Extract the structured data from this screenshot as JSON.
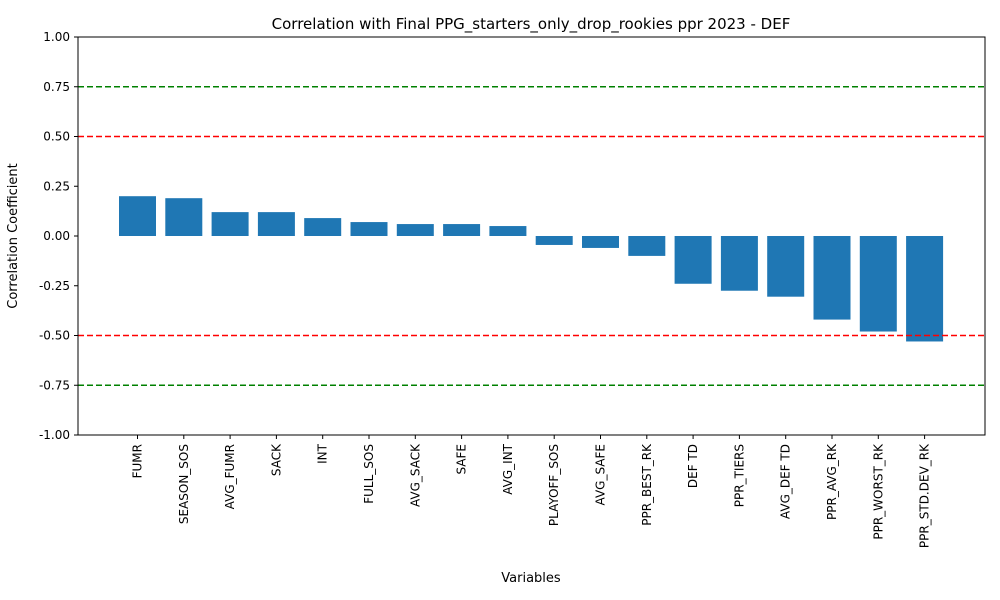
{
  "chart_data": {
    "type": "bar",
    "title": "Correlation with Final PPG_starters_only_drop_rookies ppr 2023 - DEF",
    "xlabel": "Variables",
    "ylabel": "Correlation Coefficient",
    "ylim": [
      -1.0,
      1.0
    ],
    "yticks": [
      "-1.00",
      "-0.75",
      "-0.50",
      "-0.25",
      "0.00",
      "0.25",
      "0.50",
      "0.75",
      "1.00"
    ],
    "categories": [
      "FUMR",
      "SEASON_SOS",
      "AVG_FUMR",
      "SACK",
      "INT",
      "FULL_SOS",
      "AVG_SACK",
      "SAFE",
      "AVG_INT",
      "PLAYOFF_SOS",
      "AVG_SAFE",
      "PPR_BEST_RK",
      "DEF TD",
      "PPR_TIERS",
      "AVG_DEF TD",
      "PPR_AVG_RK",
      "PPR_WORST_RK",
      "PPR_STD.DEV_RK"
    ],
    "values": [
      0.2,
      0.19,
      0.12,
      0.12,
      0.09,
      0.07,
      0.06,
      0.06,
      0.05,
      -0.045,
      -0.06,
      -0.1,
      -0.24,
      -0.275,
      -0.305,
      -0.42,
      -0.48,
      -0.53
    ],
    "bar_color": "#1f77b4",
    "reference_lines": [
      {
        "value": 0.75,
        "color": "#008000",
        "style": "dashed"
      },
      {
        "value": 0.5,
        "color": "#ff0000",
        "style": "dashed"
      },
      {
        "value": -0.5,
        "color": "#ff0000",
        "style": "dashed"
      },
      {
        "value": -0.75,
        "color": "#008000",
        "style": "dashed"
      }
    ],
    "grid": false,
    "legend": "none"
  }
}
